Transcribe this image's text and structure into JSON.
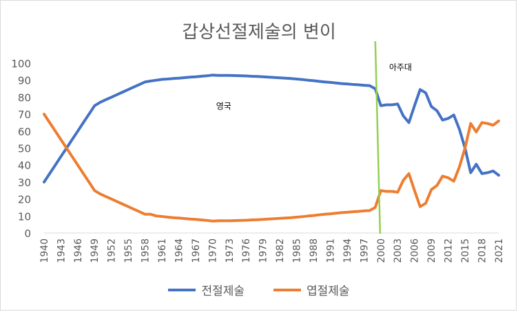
{
  "colors": {
    "series1": "#4472c4",
    "series2": "#ed7d31",
    "marker": "#92d050",
    "grid": "#d9d9d9",
    "text": "#595959"
  },
  "chart_data": {
    "type": "line",
    "title": "갑상선절제술의 변이",
    "xlabel": "",
    "ylabel": "",
    "x": [
      1940,
      1941,
      1942,
      1943,
      1944,
      1945,
      1946,
      1947,
      1948,
      1949,
      1950,
      1951,
      1952,
      1953,
      1954,
      1955,
      1956,
      1957,
      1958,
      1959,
      1960,
      1961,
      1962,
      1963,
      1964,
      1965,
      1966,
      1967,
      1968,
      1969,
      1970,
      1971,
      1972,
      1973,
      1974,
      1975,
      1976,
      1977,
      1978,
      1979,
      1980,
      1981,
      1982,
      1983,
      1984,
      1985,
      1986,
      1987,
      1988,
      1989,
      1990,
      1991,
      1992,
      1993,
      1994,
      1995,
      1996,
      1997,
      1998,
      1999,
      2000,
      2001,
      2002,
      2003,
      2004,
      2005,
      2006,
      2007,
      2008,
      2009,
      2010,
      2011,
      2012,
      2013,
      2014,
      2015,
      2016,
      2017,
      2018,
      2019,
      2020,
      2021
    ],
    "x_tick_labels": [
      "1940",
      "1943",
      "1946",
      "1949",
      "1952",
      "1955",
      "1958",
      "1961",
      "1964",
      "1967",
      "1970",
      "1973",
      "1976",
      "1979",
      "1982",
      "1985",
      "1988",
      "1991",
      "1994",
      "1997",
      "2000",
      "2003",
      "2006",
      "2009",
      "2012",
      "2015",
      "2018",
      "2021"
    ],
    "ylim": [
      0,
      100
    ],
    "y_ticks": [
      0,
      10,
      20,
      30,
      40,
      50,
      60,
      70,
      80,
      90,
      100
    ],
    "series": [
      {
        "name": "전절제술",
        "values": [
          30,
          35,
          40,
          45,
          50,
          55,
          60,
          65,
          70,
          75,
          77,
          78.5,
          80,
          81.5,
          83,
          84.5,
          86,
          87.5,
          89,
          89.5,
          90,
          90.5,
          90.7,
          91,
          91.2,
          91.5,
          91.8,
          92,
          92.3,
          92.6,
          93,
          92.8,
          92.8,
          92.8,
          92.7,
          92.6,
          92.5,
          92.3,
          92.2,
          92,
          91.8,
          91.6,
          91.4,
          91.2,
          91,
          90.7,
          90.4,
          90,
          89.7,
          89.3,
          89,
          88.7,
          88.4,
          88,
          87.8,
          87.5,
          87.3,
          87,
          86.8,
          85,
          75,
          75.5,
          75.5,
          76,
          69,
          65,
          75,
          84.5,
          82.5,
          74.5,
          72,
          66.5,
          67.5,
          69.5,
          61,
          50,
          35.5,
          40.5,
          35,
          35.5,
          36.5,
          34
        ]
      },
      {
        "name": "엽절제술",
        "values": [
          70,
          65,
          60,
          55,
          50,
          45,
          40,
          35,
          30,
          25,
          23,
          21.5,
          20,
          18.5,
          17,
          15.5,
          14,
          12.5,
          11,
          11,
          10,
          9.7,
          9.3,
          9,
          8.8,
          8.5,
          8.2,
          8,
          7.7,
          7.4,
          7,
          7.2,
          7.2,
          7.2,
          7.3,
          7.4,
          7.5,
          7.7,
          7.8,
          8,
          8.2,
          8.4,
          8.6,
          8.8,
          9,
          9.3,
          9.6,
          10,
          10.3,
          10.7,
          11,
          11.3,
          11.6,
          12,
          12.2,
          12.5,
          12.7,
          13,
          13.2,
          15,
          25,
          24.5,
          24.5,
          24,
          31,
          35,
          25,
          15.5,
          17.5,
          25.5,
          28,
          33.5,
          32.5,
          30.5,
          39,
          50,
          64.5,
          59.5,
          65,
          64.5,
          63.5,
          66
        ]
      }
    ],
    "annotations": [
      {
        "text": "영국",
        "x": 1972,
        "y": 73
      },
      {
        "text": "아주대",
        "x": 2003.5,
        "y": 96
      }
    ],
    "vertical_marker": {
      "x": 1999.5
    },
    "legend": "bottom",
    "grid": false
  }
}
